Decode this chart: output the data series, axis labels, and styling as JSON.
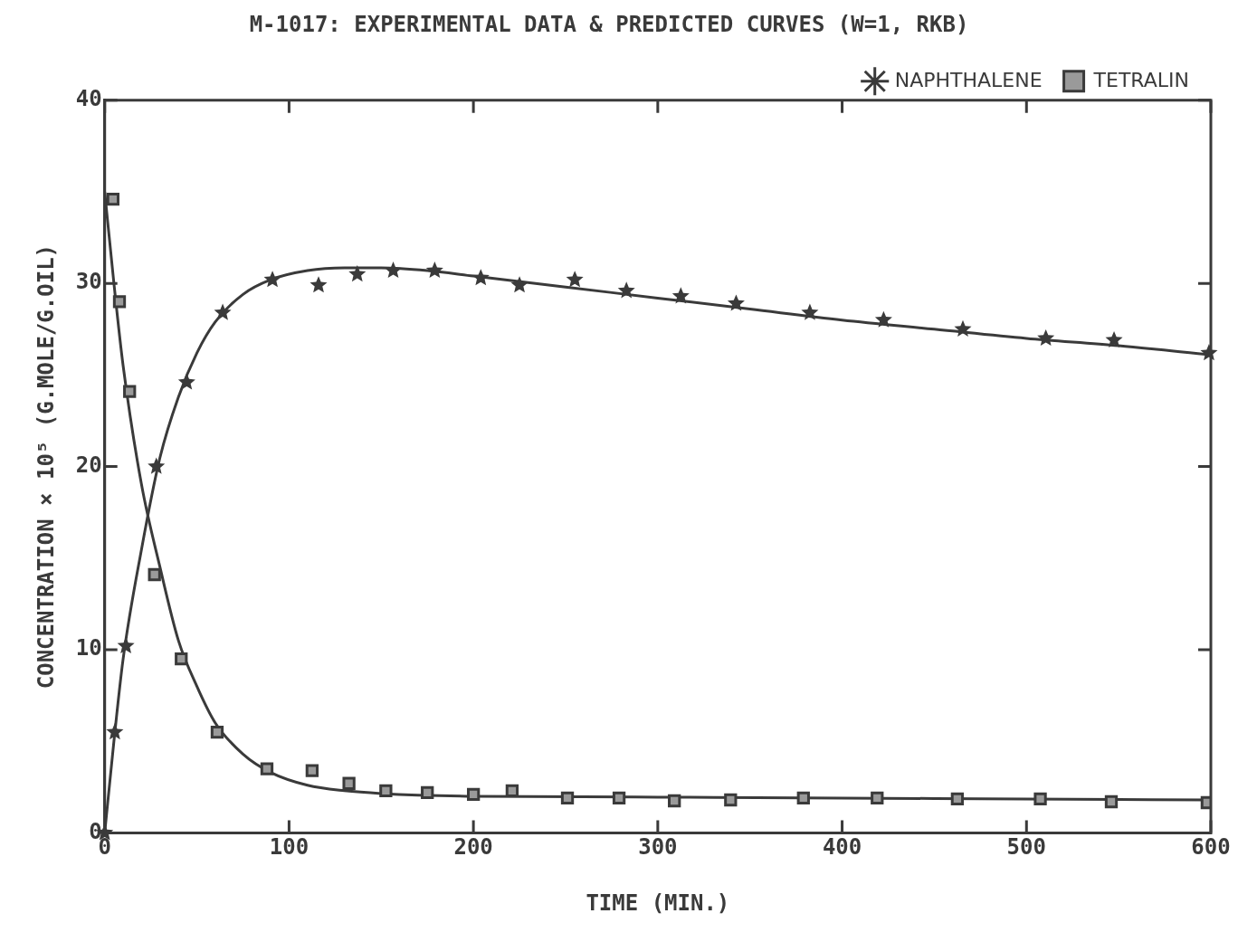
{
  "chart_data": {
    "type": "scatter",
    "title": "M-1017: EXPERIMENTAL DATA & PREDICTED CURVES (W=1, RKB)",
    "xlabel": "TIME (MIN.)",
    "ylabel": "CONCENTRATION × 10⁵ (G.MOLE/G.OIL)",
    "xlim": [
      0,
      600
    ],
    "xticks": [
      0,
      100,
      200,
      300,
      400,
      500,
      600
    ],
    "ylim": [
      0,
      40
    ],
    "yticks": [
      0,
      10,
      20,
      30,
      40
    ],
    "legend": "top right",
    "line_style": "solid",
    "series": [
      {
        "name": "NAPHTHALENE",
        "type": "scatter",
        "marker": "star",
        "color": "#3a3a3a",
        "x": [
          0,
          5.5,
          11.5,
          28,
          44.5,
          64,
          91,
          116,
          137,
          156.5,
          179,
          204,
          225,
          255,
          283,
          312.5,
          342.5,
          382.5,
          422.5,
          465.5,
          510.5,
          547.5,
          599
        ],
        "values": [
          0,
          5.5,
          10.2,
          20,
          24.6,
          28.4,
          30.2,
          29.9,
          30.5,
          30.7,
          30.7,
          30.3,
          29.9,
          30.2,
          29.6,
          29.3,
          28.9,
          28.4,
          28.0,
          27.5,
          27.0,
          26.9,
          26.2
        ]
      },
      {
        "name": "TETRALIN",
        "type": "scatter",
        "marker": "square",
        "color": "#3a3a3a",
        "x": [
          4.5,
          8,
          13.5,
          27,
          41.5,
          61,
          88,
          112.5,
          132.5,
          152.5,
          175,
          200,
          221,
          251,
          279,
          309,
          339.5,
          379,
          419,
          462.5,
          507.5,
          546,
          598
        ],
        "values": [
          34.6,
          29.0,
          24.1,
          14.1,
          9.5,
          5.5,
          3.5,
          3.4,
          2.7,
          2.3,
          2.2,
          2.1,
          2.3,
          1.9,
          1.9,
          1.75,
          1.8,
          1.9,
          1.9,
          1.85,
          1.85,
          1.7,
          1.65
        ]
      },
      {
        "type": "line",
        "marker": "none",
        "color": "#3a3a3a",
        "x": [
          0,
          5,
          10,
          20,
          30,
          40,
          50,
          60,
          75,
          90,
          110,
          130,
          150,
          175,
          200,
          250,
          300,
          350,
          400,
          450,
          500,
          550,
          600
        ],
        "values": [
          0,
          5,
          9.5,
          15.5,
          20.5,
          23.8,
          26.2,
          27.9,
          29.4,
          30.2,
          30.7,
          30.85,
          30.85,
          30.7,
          30.4,
          29.8,
          29.2,
          28.6,
          28.0,
          27.5,
          27.0,
          26.6,
          26.1
        ]
      },
      {
        "type": "line",
        "marker": "none",
        "color": "#3a3a3a",
        "x": [
          0,
          5,
          10,
          20,
          30,
          40,
          50,
          60,
          75,
          90,
          110,
          130,
          150,
          200,
          300,
          400,
          500,
          600
        ],
        "values": [
          35,
          30,
          25.5,
          19,
          14.5,
          10.5,
          8,
          6,
          4.3,
          3.3,
          2.6,
          2.3,
          2.15,
          2.0,
          1.95,
          1.9,
          1.85,
          1.8
        ]
      }
    ]
  }
}
